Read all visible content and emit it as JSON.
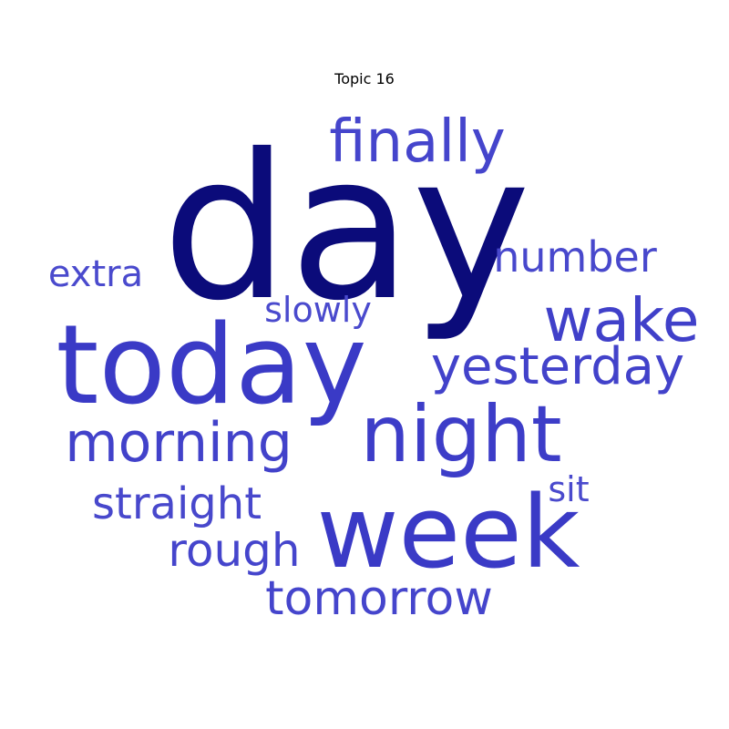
{
  "title": "Topic 16",
  "colors": {
    "primary": "#0b0b7a",
    "secondary": "#3b3bc8",
    "tertiary": "#4848cc"
  },
  "words": [
    {
      "text": "day",
      "color": "#0b0b7a"
    },
    {
      "text": "today",
      "color": "#3a3ac6"
    },
    {
      "text": "week",
      "color": "#3a3ac6"
    },
    {
      "text": "night",
      "color": "#3d3dc8"
    },
    {
      "text": "finally",
      "color": "#4545cc"
    },
    {
      "text": "wake",
      "color": "#4040c9"
    },
    {
      "text": "yesterday",
      "color": "#4242ca"
    },
    {
      "text": "morning",
      "color": "#4242ca"
    },
    {
      "text": "number",
      "color": "#4848cc"
    },
    {
      "text": "tomorrow",
      "color": "#4545cc"
    },
    {
      "text": "straight",
      "color": "#4848cc"
    },
    {
      "text": "rough",
      "color": "#4545cc"
    },
    {
      "text": "extra",
      "color": "#4a4acd"
    },
    {
      "text": "slowly",
      "color": "#4a4acd"
    },
    {
      "text": "sit",
      "color": "#4a4acd"
    }
  ]
}
